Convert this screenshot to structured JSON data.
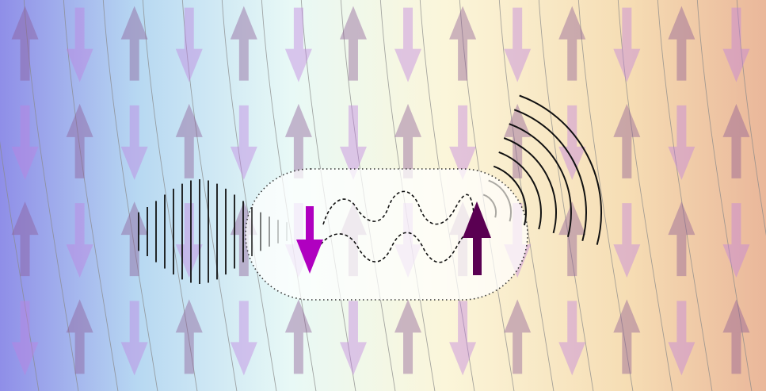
{
  "colors": {
    "background_gradient": [
      "#8f8ee8",
      "#b7d8f2",
      "#e8f9f6",
      "#fbf6da",
      "#f6ddb4",
      "#eab79a"
    ],
    "arrow_up": "#8c5a95",
    "arrow_down": "#c080e0",
    "arrow_opacity": 0.42,
    "field_line": "#8a8a8a",
    "bubble_fill": "#ffffff",
    "bubble_border": "#333333",
    "spin_down_highlight": "#b000c0",
    "spin_up_highlight": "#5a0052",
    "wave_line": "#111111",
    "dashed_wave": "#111111"
  },
  "lattice": {
    "rows": 4,
    "columns": 14,
    "pattern": "checkerboard-antiparallel"
  },
  "field_lines": {
    "count": 21,
    "curvature": "tilted-right"
  },
  "elements": {
    "incoming_wave": {
      "icon": "plane-wave-fronts",
      "line_count": 18
    },
    "outgoing_wave": {
      "icon": "spherical-wave-arcs",
      "arc_count": 8
    },
    "central_pair": {
      "left_spin": "spin-down-arrow",
      "right_spin": "spin-up-arrow",
      "coupling": "dashed-wavy-bonds"
    }
  }
}
